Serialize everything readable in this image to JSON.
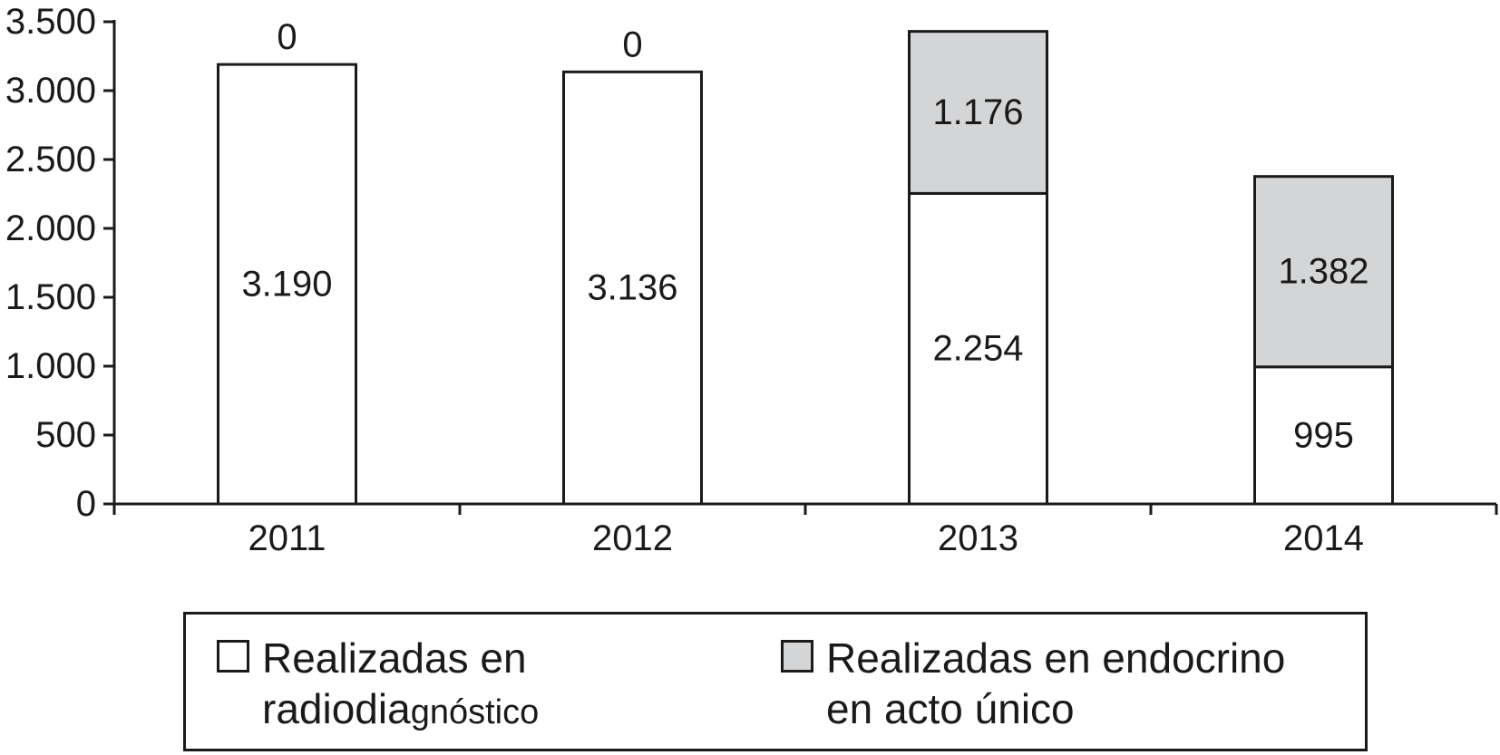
{
  "chart_data": {
    "type": "bar",
    "stacked": true,
    "categories": [
      "2011",
      "2012",
      "2013",
      "2014"
    ],
    "series": [
      {
        "name": "Realizadas en radiodiagnóstico",
        "values": [
          3190,
          3136,
          2254,
          995
        ],
        "labels": [
          "3.190",
          "3.136",
          "2.254",
          "995"
        ],
        "color": "#ffffff"
      },
      {
        "name": "Realizadas en endocrino en acto único",
        "values": [
          0,
          0,
          1176,
          1382
        ],
        "labels": [
          "0",
          "0",
          "1.176",
          "1.382"
        ],
        "color": "#d4d5d7"
      }
    ],
    "ylim": [
      0,
      3500
    ],
    "yticks": [
      0,
      500,
      1000,
      1500,
      2000,
      2500,
      3000,
      3500
    ],
    "ytick_labels": [
      "0",
      "500",
      "1.000",
      "1.500",
      "2.000",
      "2.500",
      "3.000",
      "3.500"
    ],
    "title": "",
    "xlabel": "",
    "ylabel": "",
    "grid": false,
    "legend_position": "bottom"
  },
  "legend": {
    "item1": {
      "line1": "Realizadas en",
      "line2_main": "radiodia",
      "line2_small": "gnóstico"
    },
    "item2": {
      "line1": "Realizadas en endocrino",
      "line2": "en acto único"
    }
  }
}
